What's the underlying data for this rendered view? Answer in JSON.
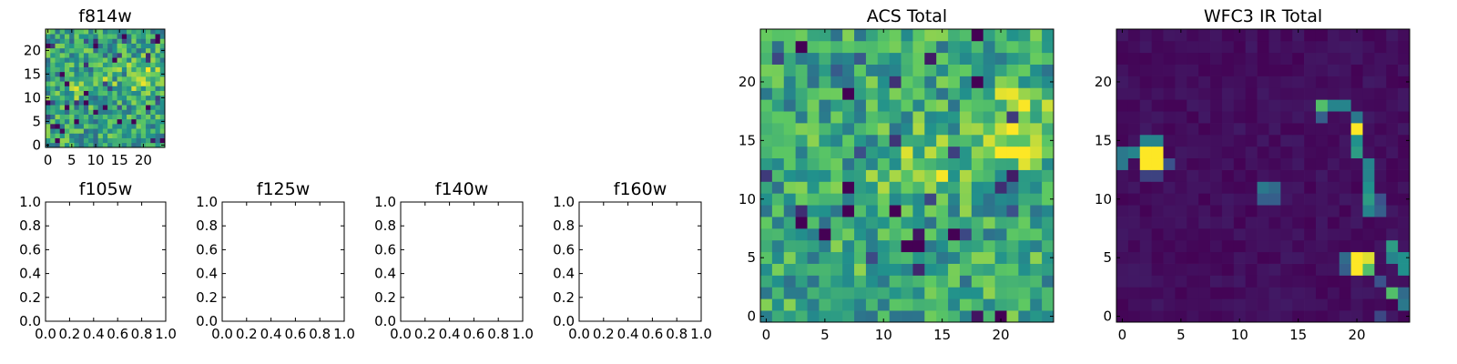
{
  "figure": {
    "colormap": [
      "#440154",
      "#3b528b",
      "#21918c",
      "#5ec962",
      "#fde725"
    ],
    "frame_color": "#000000"
  },
  "chart_data": [
    {
      "type": "heatmap",
      "title": "f814w",
      "grid": false,
      "xlim": [
        -0.5,
        24.5
      ],
      "ylim": [
        -0.5,
        24.5
      ],
      "xticks": [
        0,
        5,
        10,
        15,
        20
      ],
      "yticks": [
        0,
        5,
        10,
        15,
        20
      ],
      "shape": [
        25,
        25
      ],
      "features": [
        {
          "x": 20,
          "y": 15,
          "radius": 5,
          "value": 0.35
        },
        {
          "x": 13,
          "y": 14,
          "radius": 4,
          "value": 0.2
        },
        {
          "x": 6,
          "y": 12,
          "radius": 4,
          "value": 0.15
        }
      ],
      "background": {
        "base": 0.58,
        "noise": 0.42,
        "seed": 814
      }
    },
    {
      "type": "table",
      "title": "f105w",
      "xlim": [
        0,
        1
      ],
      "ylim": [
        0,
        1
      ],
      "xticks": [
        "0.0",
        "0.2",
        "0.4",
        "0.6",
        "0.8",
        "1.0"
      ],
      "yticks": [
        "0.0",
        "0.2",
        "0.4",
        "0.6",
        "0.8",
        "1.0"
      ]
    },
    {
      "type": "table",
      "title": "f125w",
      "xlim": [
        0,
        1
      ],
      "ylim": [
        0,
        1
      ],
      "xticks": [
        "0.0",
        "0.2",
        "0.4",
        "0.6",
        "0.8",
        "1.0"
      ],
      "yticks": [
        "0.0",
        "0.2",
        "0.4",
        "0.6",
        "0.8",
        "1.0"
      ]
    },
    {
      "type": "table",
      "title": "f140w",
      "xlim": [
        0,
        1
      ],
      "ylim": [
        0,
        1
      ],
      "xticks": [
        "0.0",
        "0.2",
        "0.4",
        "0.6",
        "0.8",
        "1.0"
      ],
      "yticks": [
        "0.0",
        "0.2",
        "0.4",
        "0.6",
        "0.8",
        "1.0"
      ]
    },
    {
      "type": "table",
      "title": "f160w",
      "xlim": [
        0,
        1
      ],
      "ylim": [
        0,
        1
      ],
      "xticks": [
        "0.0",
        "0.2",
        "0.4",
        "0.6",
        "0.8",
        "1.0"
      ],
      "yticks": [
        "0.0",
        "0.2",
        "0.4",
        "0.6",
        "0.8",
        "1.0"
      ]
    },
    {
      "type": "heatmap",
      "title": "ACS Total",
      "grid": false,
      "xlim": [
        -0.5,
        24.5
      ],
      "ylim": [
        -0.5,
        24.5
      ],
      "xticks": [
        0,
        5,
        10,
        15,
        20
      ],
      "yticks": [
        0,
        5,
        10,
        15,
        20
      ],
      "shape": [
        25,
        25
      ],
      "features": [
        {
          "x": 21,
          "y": 16,
          "radius": 5,
          "value": 0.35
        },
        {
          "x": 14,
          "y": 13,
          "radius": 4,
          "value": 0.25
        },
        {
          "x": 9,
          "y": 10,
          "radius": 3,
          "value": 0.15
        }
      ],
      "background": {
        "base": 0.6,
        "noise": 0.4,
        "seed": 101
      }
    },
    {
      "type": "heatmap",
      "title": "WFC3 IR Total",
      "grid": false,
      "xlim": [
        -0.5,
        24.5
      ],
      "ylim": [
        -0.5,
        24.5
      ],
      "xticks": [
        0,
        5,
        10,
        15,
        20
      ],
      "yticks": [
        0,
        5,
        10,
        15,
        20
      ],
      "shape": [
        25,
        25
      ],
      "background": {
        "base": 0.04,
        "noise": 0.06,
        "seed": 202
      },
      "bright_pixels": [
        {
          "x": 2,
          "y": 13,
          "value": 1.0
        },
        {
          "x": 3,
          "y": 13,
          "value": 1.0
        },
        {
          "x": 2,
          "y": 14,
          "value": 1.0
        },
        {
          "x": 3,
          "y": 14,
          "value": 1.0
        },
        {
          "x": 1,
          "y": 14,
          "value": 0.45
        },
        {
          "x": 0,
          "y": 14,
          "value": 0.4
        },
        {
          "x": 0,
          "y": 13,
          "value": 0.4
        },
        {
          "x": 2,
          "y": 15,
          "value": 0.45
        },
        {
          "x": 3,
          "y": 15,
          "value": 0.45
        },
        {
          "x": 4,
          "y": 13,
          "value": 0.25
        },
        {
          "x": 2,
          "y": 12,
          "value": 0.2
        },
        {
          "x": 3,
          "y": 12,
          "value": 0.2
        },
        {
          "x": 20,
          "y": 4,
          "value": 1.0
        },
        {
          "x": 20,
          "y": 5,
          "value": 1.0
        },
        {
          "x": 21,
          "y": 5,
          "value": 0.95
        },
        {
          "x": 21,
          "y": 4,
          "value": 0.7
        },
        {
          "x": 19,
          "y": 5,
          "value": 0.35
        },
        {
          "x": 19,
          "y": 4,
          "value": 0.3
        },
        {
          "x": 22,
          "y": 3,
          "value": 0.25
        },
        {
          "x": 23,
          "y": 6,
          "value": 0.55
        },
        {
          "x": 23,
          "y": 5,
          "value": 0.45
        },
        {
          "x": 24,
          "y": 5,
          "value": 0.5
        },
        {
          "x": 24,
          "y": 4,
          "value": 0.5
        },
        {
          "x": 23,
          "y": 2,
          "value": 0.7
        },
        {
          "x": 24,
          "y": 1,
          "value": 0.4
        },
        {
          "x": 24,
          "y": 2,
          "value": 0.35
        },
        {
          "x": 17,
          "y": 18,
          "value": 0.7
        },
        {
          "x": 18,
          "y": 18,
          "value": 0.45
        },
        {
          "x": 19,
          "y": 18,
          "value": 0.45
        },
        {
          "x": 17,
          "y": 17,
          "value": 0.3
        },
        {
          "x": 20,
          "y": 16,
          "value": 1.0
        },
        {
          "x": 20,
          "y": 17,
          "value": 0.4
        },
        {
          "x": 20,
          "y": 15,
          "value": 0.5
        },
        {
          "x": 20,
          "y": 14,
          "value": 0.55
        },
        {
          "x": 21,
          "y": 13,
          "value": 0.45
        },
        {
          "x": 21,
          "y": 12,
          "value": 0.45
        },
        {
          "x": 21,
          "y": 11,
          "value": 0.5
        },
        {
          "x": 21,
          "y": 10,
          "value": 0.55
        },
        {
          "x": 21,
          "y": 9,
          "value": 0.45
        },
        {
          "x": 22,
          "y": 9,
          "value": 0.3
        },
        {
          "x": 22,
          "y": 10,
          "value": 0.25
        },
        {
          "x": 12,
          "y": 11,
          "value": 0.4
        },
        {
          "x": 13,
          "y": 11,
          "value": 0.35
        },
        {
          "x": 12,
          "y": 10,
          "value": 0.3
        },
        {
          "x": 13,
          "y": 10,
          "value": 0.3
        },
        {
          "x": 22,
          "y": 0,
          "value": 0.22
        }
      ]
    }
  ]
}
